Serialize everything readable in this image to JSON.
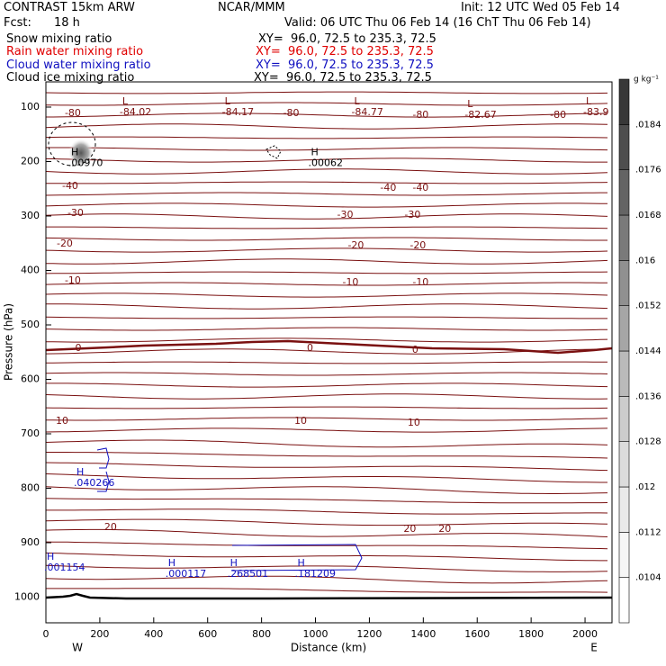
{
  "header": {
    "title": "CONTRAST 15km ARW",
    "center": "NCAR/MMM",
    "init": "Init: 12 UTC Wed 05 Feb 14",
    "fcst_label": "Fcst:",
    "fcst_value": "18 h",
    "valid": "Valid: 06 UTC Thu 06 Feb 14 (16 ChT Thu 06 Feb 14)",
    "fields": [
      {
        "name": "Snow mixing ratio",
        "xy": "XY=  96.0, 72.5 to 235.3, 72.5",
        "color": "#000000"
      },
      {
        "name": "Rain water mixing ratio",
        "xy": "XY=  96.0, 72.5 to 235.3, 72.5",
        "color": "#e00000"
      },
      {
        "name": "Cloud water mixing ratio",
        "xy": "XY=  96.0, 72.5 to 235.3, 72.5",
        "color": "#1010c0"
      },
      {
        "name": "Cloud ice mixing ratio",
        "xy": "XY=  96.0, 72.5 to 235.3, 72.5",
        "color": "#000000"
      }
    ]
  },
  "colors": {
    "isotherm": "#7a1010",
    "cloud_water": "#1010c0",
    "ground": "#000000",
    "rain": "#e00000"
  },
  "chart_data": {
    "type": "cross-section",
    "xlabel": "Distance (km)",
    "ylabel": "Pressure (hPa)",
    "xlim": [
      0,
      2100
    ],
    "ylim": [
      1040,
      70
    ],
    "x_ticks": [
      0,
      200,
      400,
      600,
      800,
      1000,
      1200,
      1400,
      1600,
      1800,
      2000
    ],
    "y_ticks": [
      100,
      200,
      300,
      400,
      500,
      600,
      700,
      800,
      900,
      1000
    ],
    "direction_labels": {
      "west": "W",
      "east": "E"
    },
    "colorbar": {
      "unit": "g kg⁻¹",
      "labels": [
        ".0104",
        ".0112",
        ".012",
        ".0128",
        ".0136",
        ".0144",
        ".0152",
        ".016",
        ".0168",
        ".0176",
        ".0184"
      ]
    },
    "isotherms": [
      {
        "temp": -80,
        "labels": [
          {
            "x": 100,
            "text": "-80"
          },
          {
            "x": 910,
            "text": "-80"
          },
          {
            "x": 1390,
            "text": "-80"
          },
          {
            "x": 1900,
            "text": "-80"
          }
        ]
      },
      {
        "temp": -40,
        "labels": [
          {
            "x": 90,
            "text": "-40"
          },
          {
            "x": 1270,
            "text": "-40"
          },
          {
            "x": 1390,
            "text": "-40"
          }
        ]
      },
      {
        "temp": -30,
        "labels": [
          {
            "x": 110,
            "text": "-30"
          },
          {
            "x": 1110,
            "text": "-30"
          },
          {
            "x": 1360,
            "text": "-30"
          }
        ]
      },
      {
        "temp": -20,
        "labels": [
          {
            "x": 70,
            "text": "-20"
          },
          {
            "x": 1150,
            "text": "-20"
          },
          {
            "x": 1380,
            "text": "-20"
          }
        ]
      },
      {
        "temp": -10,
        "labels": [
          {
            "x": 100,
            "text": "-10"
          },
          {
            "x": 1130,
            "text": "-10"
          },
          {
            "x": 1390,
            "text": "-10"
          }
        ]
      },
      {
        "temp": 0,
        "labels": [
          {
            "x": 120,
            "text": "0"
          },
          {
            "x": 980,
            "text": "0"
          },
          {
            "x": 1370,
            "text": "0"
          }
        ]
      },
      {
        "temp": 10,
        "labels": [
          {
            "x": 60,
            "text": "10"
          },
          {
            "x": 945,
            "text": "10"
          },
          {
            "x": 1365,
            "text": "10"
          }
        ]
      },
      {
        "temp": 20,
        "labels": [
          {
            "x": 240,
            "text": "20"
          },
          {
            "x": 1350,
            "text": "20"
          },
          {
            "x": 1480,
            "text": "20"
          }
        ]
      }
    ],
    "extrema": [
      {
        "type": "L",
        "x": 300,
        "p": 110,
        "value": "-84.02"
      },
      {
        "type": "L",
        "x": 680,
        "p": 110,
        "value": "-84.17"
      },
      {
        "type": "L",
        "x": 1160,
        "p": 110,
        "value": "-84.77"
      },
      {
        "type": "L",
        "x": 1580,
        "p": 115,
        "value": "-82.67"
      },
      {
        "type": "L",
        "x": 2020,
        "p": 110,
        "value": "-83.9"
      },
      {
        "type": "H",
        "x": 110,
        "p": 203,
        "value": ".00970"
      },
      {
        "type": "H",
        "x": 1000,
        "p": 203,
        "value": ".00062"
      },
      {
        "type": "H",
        "x": 130,
        "p": 791,
        "value": ".040266"
      },
      {
        "type": "H",
        "x": 20,
        "p": 946,
        "value": ".001154"
      },
      {
        "type": "H",
        "x": 470,
        "p": 958,
        "value": ".000117"
      },
      {
        "type": "H",
        "x": 700,
        "p": 958,
        "value": ".268501"
      },
      {
        "type": "H",
        "x": 950,
        "p": 958,
        "value": ".181209"
      }
    ]
  }
}
